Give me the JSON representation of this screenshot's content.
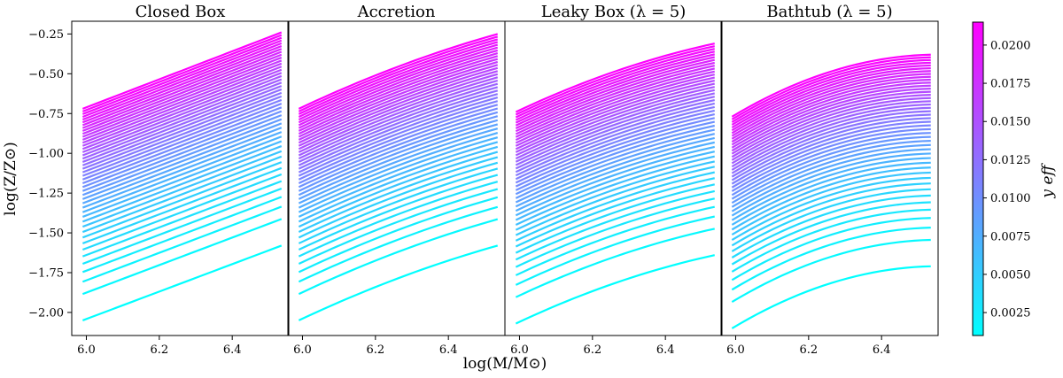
{
  "chart_data": {
    "type": "line",
    "ylabel": "log(Z/Z⊙)",
    "xlabel": "log(M/M⊙)",
    "x_range": [
      5.99,
      6.535
    ],
    "xlim": [
      5.96,
      6.555
    ],
    "ylim": [
      -2.145,
      -0.17
    ],
    "xticks": [
      6.0,
      6.2,
      6.4
    ],
    "xtick_labels": [
      "6.0",
      "6.2",
      "6.4"
    ],
    "yticks": [
      -0.25,
      -0.5,
      -0.75,
      -1.0,
      -1.25,
      -1.5,
      -1.75,
      -2.0
    ],
    "ytick_labels": [
      "−0.25",
      "−0.50",
      "−0.75",
      "−1.00",
      "−1.25",
      "−1.50",
      "−1.75",
      "−2.00"
    ],
    "n_curves_per_panel": 45,
    "panels": [
      {
        "title": "Closed Box",
        "y_start_low": -2.05,
        "y_start_high": -0.72,
        "y_end_low": -1.58,
        "y_end_high": -0.24,
        "curvature": 0.0
      },
      {
        "title": "Accretion",
        "y_start_low": -2.05,
        "y_start_high": -0.72,
        "y_end_low": -1.58,
        "y_end_high": -0.25,
        "curvature": 0.03
      },
      {
        "title": "Leaky Box (λ = 5)",
        "y_start_low": -2.07,
        "y_start_high": -0.74,
        "y_end_low": -1.64,
        "y_end_high": -0.31,
        "curvature": 0.04
      },
      {
        "title": "Bathtub (λ = 5)",
        "y_start_low": -2.1,
        "y_start_high": -0.77,
        "y_end_low": -1.71,
        "y_end_high": -0.38,
        "curvature": 0.09
      }
    ],
    "colorbar": {
      "label": "y eff",
      "range": [
        0.001,
        0.0215
      ],
      "ticks": [
        0.0025,
        0.005,
        0.0075,
        0.01,
        0.0125,
        0.015,
        0.0175,
        0.02
      ],
      "tick_labels": [
        "0.0025",
        "0.0050",
        "0.0075",
        "0.0100",
        "0.0125",
        "0.0150",
        "0.0175",
        "0.0200"
      ],
      "colormap": "cool",
      "color_low": "#00ffff",
      "color_high": "#ff00ff"
    }
  }
}
